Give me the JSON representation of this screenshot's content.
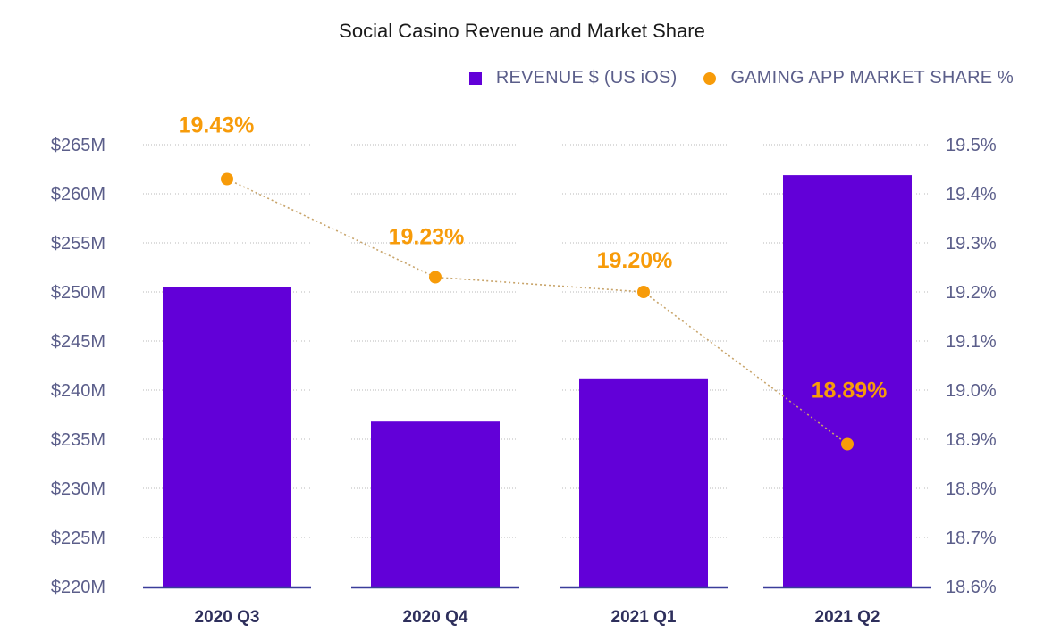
{
  "colors": {
    "bar": "#6200d8",
    "line": "#f79b09",
    "axis_text": "#5b5e8a",
    "baseline": "#3a3d9a",
    "grid": "#b8b8b8"
  },
  "legend": {
    "revenue_label": "REVENUE $ (US iOS)",
    "share_label": "GAMING APP MARKET SHARE %"
  },
  "chart_data": {
    "type": "bar+line",
    "title": "Social Casino Revenue and Market Share",
    "categories": [
      "2020 Q3",
      "2020 Q4",
      "2021 Q1",
      "2021 Q2"
    ],
    "series": [
      {
        "name": "REVENUE $ (US iOS)",
        "type": "bar",
        "axis": "left",
        "values": [
          250.5,
          236.8,
          241.2,
          261.9
        ]
      },
      {
        "name": "GAMING APP MARKET SHARE %",
        "type": "line",
        "axis": "right",
        "values": [
          19.43,
          19.23,
          19.2,
          18.89
        ],
        "labels": [
          "19.43%",
          "19.23%",
          "19.20%",
          "18.89%"
        ]
      }
    ],
    "left_axis": {
      "ylim": [
        220,
        265
      ],
      "ticks": [
        220,
        225,
        230,
        235,
        240,
        245,
        250,
        255,
        260,
        265
      ],
      "tick_labels": [
        "$220M",
        "$225M",
        "$230M",
        "$235M",
        "$240M",
        "$245M",
        "$250M",
        "$255M",
        "$260M",
        "$265M"
      ]
    },
    "right_axis": {
      "ylim": [
        18.6,
        19.5
      ],
      "ticks": [
        18.6,
        18.7,
        18.8,
        18.9,
        19.0,
        19.1,
        19.2,
        19.3,
        19.4,
        19.5
      ],
      "tick_labels": [
        "18.6%",
        "18.7%",
        "18.8%",
        "18.9%",
        "19.0%",
        "19.1%",
        "19.2%",
        "19.3%",
        "19.4%",
        "19.5%"
      ]
    },
    "grid": true,
    "legend_position": "top-right"
  }
}
